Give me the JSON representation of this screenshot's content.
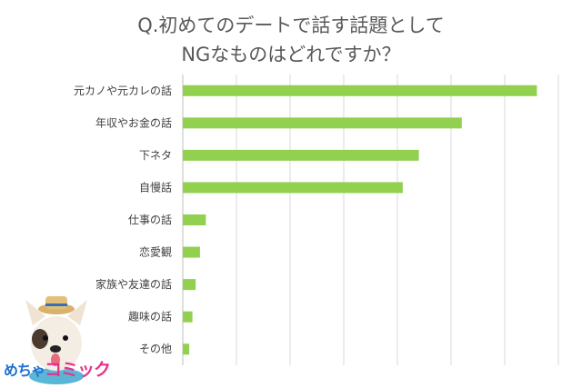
{
  "chart_data": {
    "type": "bar",
    "orientation": "horizontal",
    "title_lines": [
      "Q.初めてのデートで話す話題として",
      "NGなものはどれですか？"
    ],
    "categories": [
      "元カノや元カレの話",
      "年収やお金の話",
      "下ネタ",
      "自慢話",
      "仕事の話",
      "恋愛観",
      "家族や友達の話",
      "趣味の話",
      "その他"
    ],
    "values": [
      66,
      52,
      44,
      41,
      4.3,
      3.2,
      2.4,
      1.8,
      1.2
    ],
    "xlim": [
      0,
      70
    ],
    "grid": true,
    "bar_color": "#92d050",
    "grid_color": "#d9d9d9"
  },
  "logo": {
    "text_part1": "めちゃ",
    "text_part2": "コミック"
  }
}
